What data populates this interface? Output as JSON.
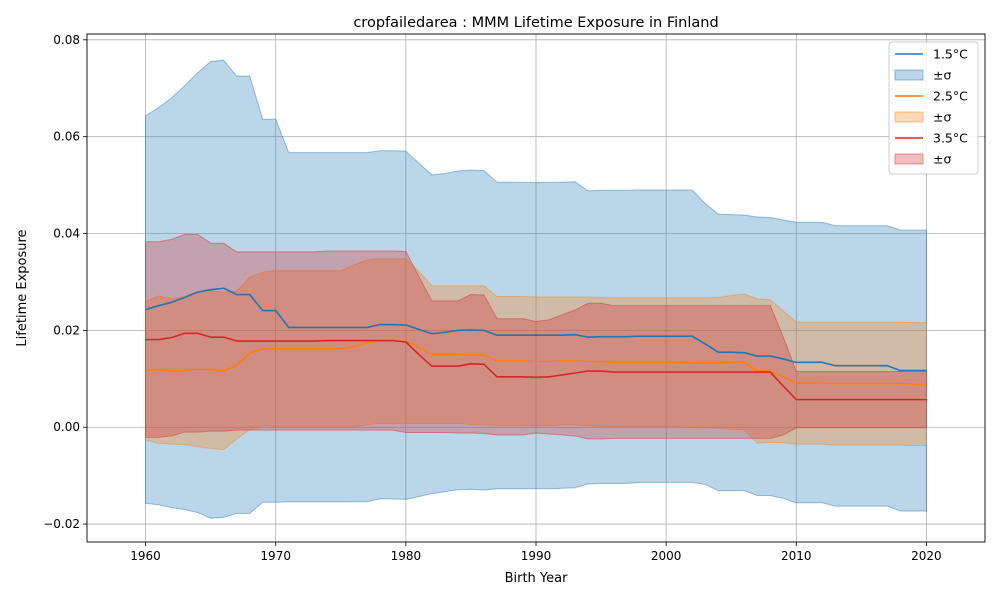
{
  "chart_data": {
    "type": "area",
    "title": "cropfailedarea : MMM Lifetime Exposure in Finland",
    "xlabel": "Birth Year",
    "ylabel": "Lifetime Exposure",
    "xlim": [
      1955.5,
      2024.5
    ],
    "ylim": [
      -0.0237,
      0.0812
    ],
    "xticks": [
      1960,
      1970,
      1980,
      1990,
      2000,
      2010,
      2020
    ],
    "xtick_labels": [
      "1960",
      "1970",
      "1980",
      "1990",
      "2000",
      "2010",
      "2020"
    ],
    "yticks": [
      -0.02,
      0.0,
      0.02,
      0.04,
      0.06,
      0.08
    ],
    "ytick_labels": [
      "−0.02",
      "0.00",
      "0.02",
      "0.04",
      "0.06",
      "0.08"
    ],
    "grid": true,
    "legend_position": "top-right",
    "x": [
      1960,
      1961,
      1962,
      1963,
      1964,
      1965,
      1966,
      1967,
      1968,
      1969,
      1970,
      1971,
      1972,
      1973,
      1974,
      1975,
      1976,
      1977,
      1978,
      1979,
      1980,
      1981,
      1982,
      1983,
      1984,
      1985,
      1986,
      1987,
      1988,
      1989,
      1990,
      1991,
      1992,
      1993,
      1994,
      1995,
      1996,
      1997,
      1998,
      1999,
      2000,
      2001,
      2002,
      2003,
      2004,
      2005,
      2006,
      2007,
      2008,
      2009,
      2010,
      2011,
      2012,
      2013,
      2014,
      2015,
      2016,
      2017,
      2018,
      2019,
      2020
    ],
    "series": [
      {
        "name": "1.5°C",
        "band_label": "±σ",
        "color": "#1f77b4",
        "values": [
          0.0243,
          0.0251,
          0.0258,
          0.0268,
          0.0279,
          0.0284,
          0.0287,
          0.0274,
          0.0274,
          0.0241,
          0.0241,
          0.0206,
          0.0206,
          0.0206,
          0.0206,
          0.0206,
          0.0206,
          0.0206,
          0.0212,
          0.0212,
          0.0211,
          0.0202,
          0.0193,
          0.0196,
          0.02,
          0.0201,
          0.02,
          0.019,
          0.019,
          0.019,
          0.019,
          0.019,
          0.019,
          0.0191,
          0.0186,
          0.0187,
          0.0187,
          0.0187,
          0.0188,
          0.0188,
          0.0188,
          0.0188,
          0.0188,
          0.0172,
          0.0155,
          0.0155,
          0.0154,
          0.0147,
          0.0147,
          0.0141,
          0.0134,
          0.0134,
          0.0134,
          0.0127,
          0.0127,
          0.0127,
          0.0127,
          0.0127,
          0.0117,
          0.0117,
          0.0117
        ],
        "upper": [
          0.0643,
          0.066,
          0.068,
          0.0705,
          0.0732,
          0.0755,
          0.0758,
          0.0725,
          0.0725,
          0.0636,
          0.0636,
          0.0567,
          0.0567,
          0.0567,
          0.0567,
          0.0567,
          0.0567,
          0.0567,
          0.0571,
          0.0571,
          0.057,
          0.0545,
          0.0521,
          0.0524,
          0.0529,
          0.0531,
          0.053,
          0.0506,
          0.0506,
          0.0506,
          0.0505,
          0.0506,
          0.0506,
          0.0507,
          0.0488,
          0.0489,
          0.0489,
          0.0489,
          0.049,
          0.049,
          0.049,
          0.049,
          0.049,
          0.0462,
          0.044,
          0.0439,
          0.0438,
          0.0434,
          0.0433,
          0.0428,
          0.0423,
          0.0423,
          0.0423,
          0.0416,
          0.0416,
          0.0416,
          0.0416,
          0.0416,
          0.0407,
          0.0407,
          0.0407
        ],
        "lower": [
          -0.0157,
          -0.016,
          -0.0166,
          -0.017,
          -0.0176,
          -0.0188,
          -0.0186,
          -0.0178,
          -0.0178,
          -0.0155,
          -0.0155,
          -0.0154,
          -0.0154,
          -0.0154,
          -0.0154,
          -0.0154,
          -0.0154,
          -0.0154,
          -0.0148,
          -0.0148,
          -0.0149,
          -0.0143,
          -0.0137,
          -0.0133,
          -0.0129,
          -0.0128,
          -0.013,
          -0.0127,
          -0.0127,
          -0.0127,
          -0.0127,
          -0.0127,
          -0.0126,
          -0.0125,
          -0.0117,
          -0.0116,
          -0.0116,
          -0.0116,
          -0.0114,
          -0.0114,
          -0.0114,
          -0.0114,
          -0.0114,
          -0.0118,
          -0.0131,
          -0.0131,
          -0.0131,
          -0.0141,
          -0.0141,
          -0.0147,
          -0.0156,
          -0.0156,
          -0.0156,
          -0.0163,
          -0.0163,
          -0.0163,
          -0.0163,
          -0.0163,
          -0.0173,
          -0.0173,
          -0.0173
        ]
      },
      {
        "name": "2.5°C",
        "band_label": "±σ",
        "color": "#ff7f0e",
        "values": [
          0.0117,
          0.0119,
          0.0116,
          0.0117,
          0.012,
          0.0119,
          0.0116,
          0.0128,
          0.0153,
          0.0162,
          0.0162,
          0.0162,
          0.0162,
          0.0162,
          0.0162,
          0.0162,
          0.0166,
          0.0175,
          0.0178,
          0.0178,
          0.0178,
          0.0165,
          0.015,
          0.015,
          0.015,
          0.0149,
          0.0149,
          0.0137,
          0.0137,
          0.0137,
          0.0136,
          0.0136,
          0.0137,
          0.0137,
          0.0136,
          0.0135,
          0.0134,
          0.0134,
          0.0134,
          0.0134,
          0.0134,
          0.0134,
          0.0133,
          0.0133,
          0.0133,
          0.0134,
          0.0135,
          0.0116,
          0.0116,
          0.0104,
          0.0091,
          0.0091,
          0.0091,
          0.009,
          0.009,
          0.009,
          0.009,
          0.009,
          0.009,
          0.0089,
          0.0089
        ],
        "upper": [
          0.026,
          0.0271,
          0.0265,
          0.027,
          0.028,
          0.0282,
          0.0279,
          0.0281,
          0.031,
          0.032,
          0.0323,
          0.0323,
          0.0323,
          0.0323,
          0.0323,
          0.0323,
          0.0335,
          0.0345,
          0.0348,
          0.0348,
          0.0348,
          0.0322,
          0.0292,
          0.0292,
          0.0292,
          0.0292,
          0.0292,
          0.027,
          0.027,
          0.027,
          0.0269,
          0.0269,
          0.0269,
          0.0269,
          0.0269,
          0.0268,
          0.0267,
          0.0267,
          0.0267,
          0.0267,
          0.0267,
          0.0267,
          0.0267,
          0.0267,
          0.0268,
          0.0272,
          0.0275,
          0.0265,
          0.0263,
          0.024,
          0.0217,
          0.0217,
          0.0217,
          0.0217,
          0.0217,
          0.0217,
          0.0217,
          0.0217,
          0.0217,
          0.0216,
          0.0216
        ],
        "lower": [
          -0.0026,
          -0.0033,
          -0.0035,
          -0.0036,
          -0.004,
          -0.0044,
          -0.0046,
          -0.0024,
          -0.0005,
          0.0004,
          0.0001,
          0.0001,
          0.0001,
          0.0001,
          0.0001,
          0.0001,
          0.0001,
          0.0005,
          0.0008,
          0.0008,
          0.0008,
          0.0008,
          0.0008,
          0.0008,
          0.0008,
          0.0006,
          0.0006,
          0.0004,
          0.0004,
          0.0004,
          0.0003,
          0.0003,
          0.0005,
          0.0005,
          0.0003,
          0.0002,
          0.0001,
          0.0001,
          0.0001,
          0.0001,
          0.0001,
          0.0001,
          -0.0001,
          -0.0001,
          -0.0002,
          -0.0004,
          -0.0005,
          -0.0033,
          -0.0031,
          -0.0032,
          -0.0035,
          -0.0035,
          -0.0035,
          -0.0037,
          -0.0037,
          -0.0037,
          -0.0037,
          -0.0037,
          -0.0037,
          -0.0038,
          -0.0038
        ]
      },
      {
        "name": "3.5°C",
        "band_label": "±σ",
        "color": "#d62728",
        "values": [
          0.0181,
          0.0181,
          0.0185,
          0.0194,
          0.0194,
          0.0186,
          0.0186,
          0.0178,
          0.0178,
          0.0178,
          0.0178,
          0.0178,
          0.0178,
          0.0178,
          0.0179,
          0.0179,
          0.0179,
          0.0179,
          0.0179,
          0.0179,
          0.0176,
          0.015,
          0.0126,
          0.0126,
          0.0126,
          0.0131,
          0.013,
          0.0104,
          0.0104,
          0.0104,
          0.0103,
          0.0104,
          0.0108,
          0.0112,
          0.0116,
          0.0116,
          0.0114,
          0.0114,
          0.0114,
          0.0114,
          0.0114,
          0.0114,
          0.0114,
          0.0114,
          0.0114,
          0.0114,
          0.0114,
          0.0114,
          0.0114,
          0.0085,
          0.0057,
          0.0057,
          0.0057,
          0.0057,
          0.0057,
          0.0057,
          0.0057,
          0.0057,
          0.0057,
          0.0057,
          0.0057
        ],
        "upper": [
          0.0383,
          0.0383,
          0.0388,
          0.0398,
          0.0398,
          0.038,
          0.038,
          0.0362,
          0.0362,
          0.0362,
          0.0362,
          0.0362,
          0.0362,
          0.0362,
          0.0364,
          0.0364,
          0.0364,
          0.0364,
          0.0364,
          0.0364,
          0.0363,
          0.0311,
          0.0261,
          0.0261,
          0.0261,
          0.0274,
          0.0273,
          0.0224,
          0.0224,
          0.0224,
          0.0218,
          0.0222,
          0.0232,
          0.0242,
          0.0256,
          0.0256,
          0.0251,
          0.0251,
          0.0251,
          0.0251,
          0.0251,
          0.0251,
          0.0251,
          0.0251,
          0.0251,
          0.0251,
          0.0251,
          0.0251,
          0.0251,
          0.0186,
          0.0115,
          0.0115,
          0.0115,
          0.0115,
          0.0115,
          0.0115,
          0.0115,
          0.0115,
          0.0115,
          0.0115,
          0.0115
        ],
        "lower": [
          -0.0021,
          -0.0021,
          -0.0018,
          -0.001,
          -0.001,
          -0.0008,
          -0.0008,
          -0.0006,
          -0.0006,
          -0.0006,
          -0.0006,
          -0.0006,
          -0.0006,
          -0.0006,
          -0.0006,
          -0.0006,
          -0.0006,
          -0.0006,
          -0.0006,
          -0.0006,
          -0.0011,
          -0.0011,
          -0.0011,
          -0.0011,
          -0.0012,
          -0.0012,
          -0.0013,
          -0.0016,
          -0.0016,
          -0.0016,
          -0.0012,
          -0.0014,
          -0.0016,
          -0.0018,
          -0.0024,
          -0.0024,
          -0.0023,
          -0.0023,
          -0.0023,
          -0.0023,
          -0.0023,
          -0.0023,
          -0.0023,
          -0.0023,
          -0.0023,
          -0.0023,
          -0.0023,
          -0.0023,
          -0.0023,
          -0.0016,
          -0.0001,
          -0.0001,
          -0.0001,
          -0.0001,
          -0.0001,
          -0.0001,
          -0.0001,
          -0.0001,
          -0.0001,
          -0.0001,
          -0.0001
        ]
      }
    ]
  }
}
